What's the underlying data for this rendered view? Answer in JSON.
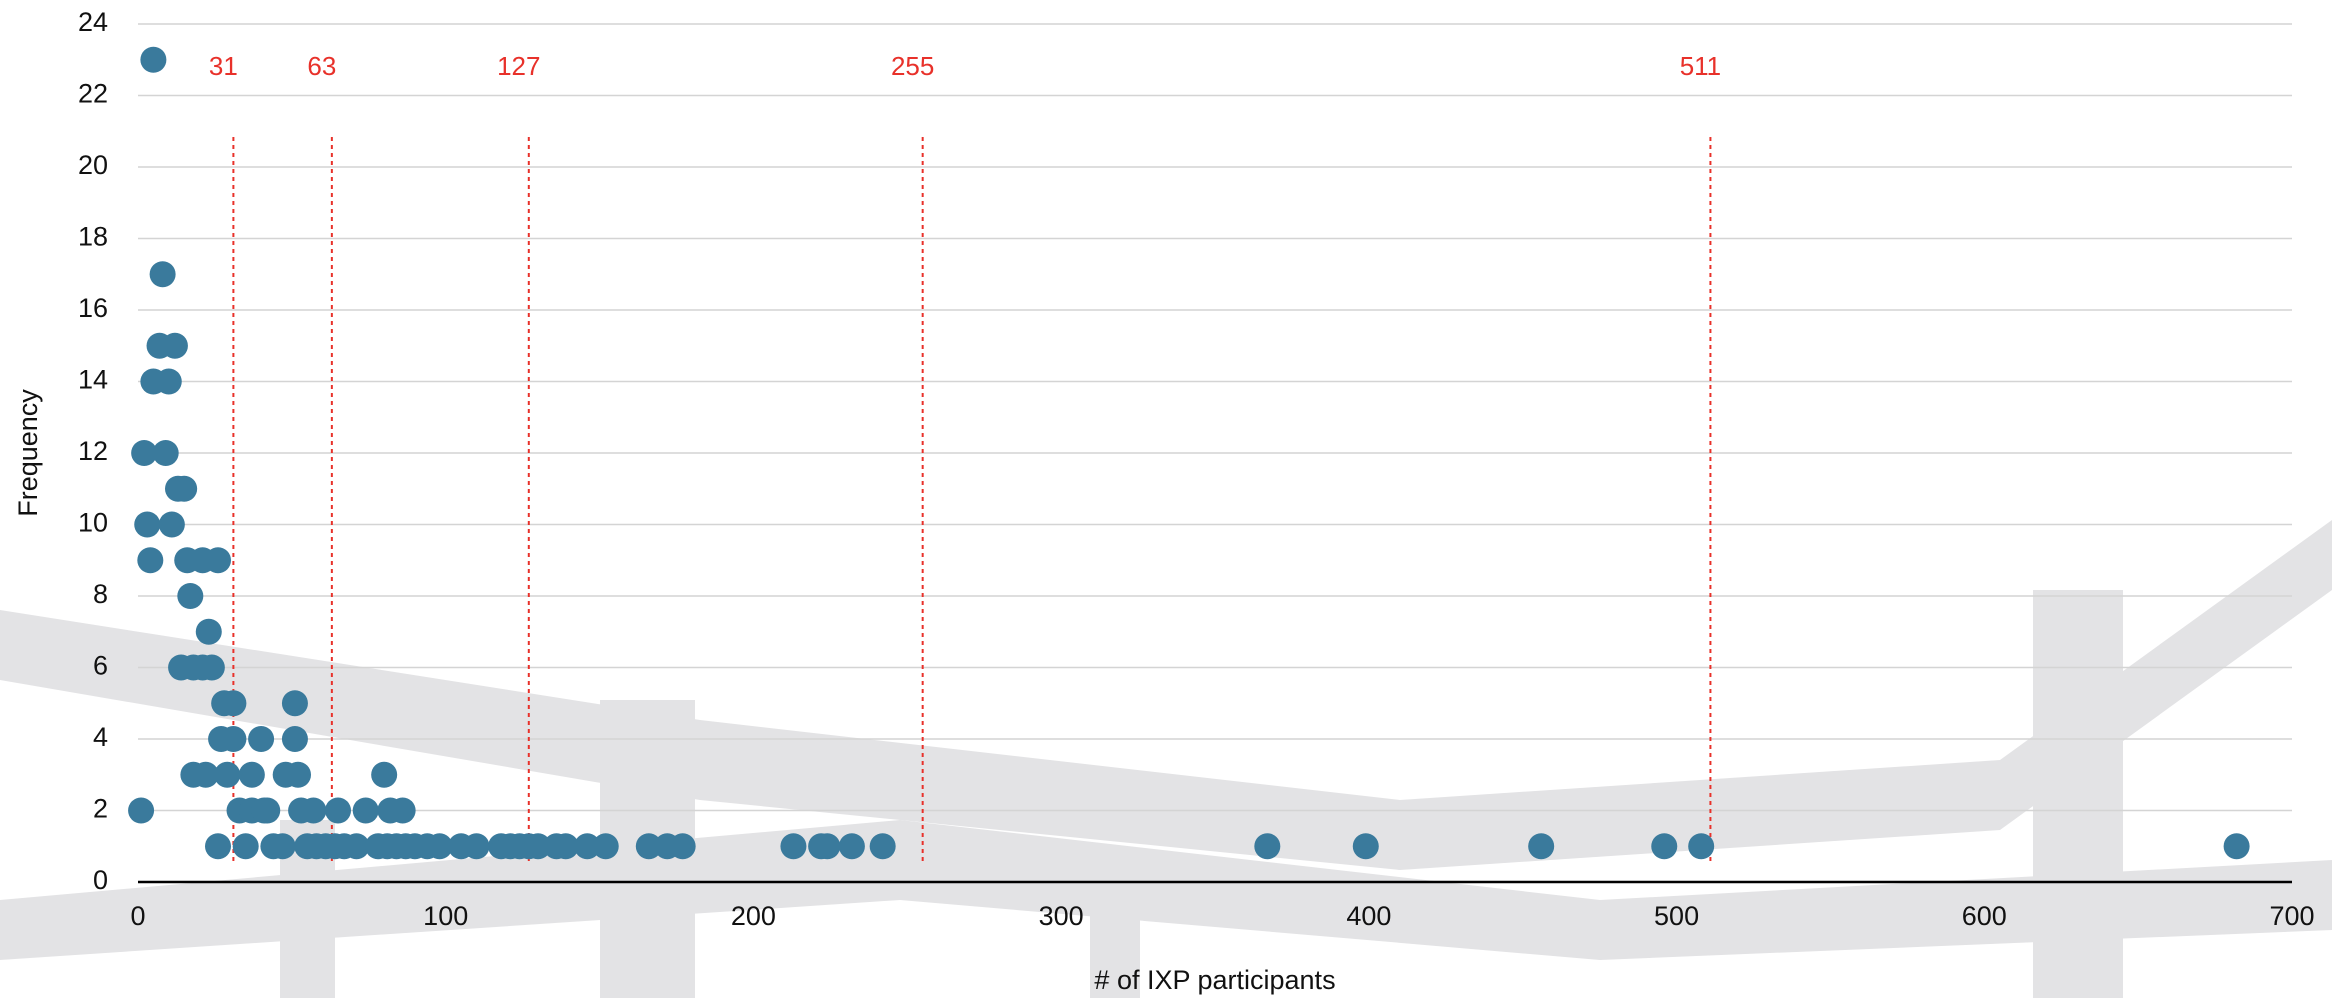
{
  "chart_data": {
    "type": "scatter",
    "x_label": "# of IXP participants",
    "y_label": "Frequency",
    "xlim": [
      0,
      700
    ],
    "ylim": [
      0,
      24
    ],
    "xticks": [
      0,
      100,
      200,
      300,
      400,
      500,
      600,
      700
    ],
    "yticks": [
      0,
      2,
      4,
      6,
      8,
      10,
      12,
      14,
      16,
      18,
      20,
      22,
      24
    ],
    "grid": true,
    "series": [
      {
        "color": "#3a7a9c",
        "x": [
          1,
          5,
          2,
          3,
          4,
          8,
          7,
          12,
          5,
          10,
          9,
          11,
          13,
          15,
          16,
          21,
          26,
          17,
          23,
          14,
          18,
          21,
          24,
          28,
          31,
          27,
          31,
          40,
          51,
          51,
          18,
          22,
          29,
          37,
          48,
          52,
          80,
          33,
          37,
          41,
          42,
          53,
          57,
          65,
          74,
          82,
          86,
          26,
          35,
          44,
          47,
          55,
          58,
          61,
          64,
          67,
          71,
          78,
          81,
          84,
          87,
          90,
          94,
          98,
          105,
          110,
          118,
          121,
          124,
          127,
          130,
          136,
          139,
          146,
          152,
          166,
          172,
          177,
          213,
          222,
          224,
          232,
          242,
          367,
          399,
          456,
          496,
          508,
          682
        ],
        "values": [
          2,
          23,
          12,
          10,
          9,
          17,
          15,
          15,
          14,
          14,
          12,
          10,
          11,
          11,
          9,
          9,
          9,
          8,
          7,
          6,
          6,
          6,
          6,
          5,
          5,
          4,
          4,
          4,
          5,
          4,
          3,
          3,
          3,
          3,
          3,
          3,
          3,
          2,
          2,
          2,
          2,
          2,
          2,
          2,
          2,
          2,
          2,
          1,
          1,
          1,
          1,
          1,
          1,
          1,
          1,
          1,
          1,
          1,
          1,
          1,
          1,
          1,
          1,
          1,
          1,
          1,
          1,
          1,
          1,
          1,
          1,
          1,
          1,
          1,
          1,
          1,
          1,
          1,
          1,
          1,
          1,
          1,
          1,
          1,
          1,
          1,
          1,
          1,
          1
        ]
      }
    ],
    "reference_lines": {
      "color": "#e8312a",
      "values": [
        31,
        63,
        127,
        255,
        511
      ]
    }
  }
}
